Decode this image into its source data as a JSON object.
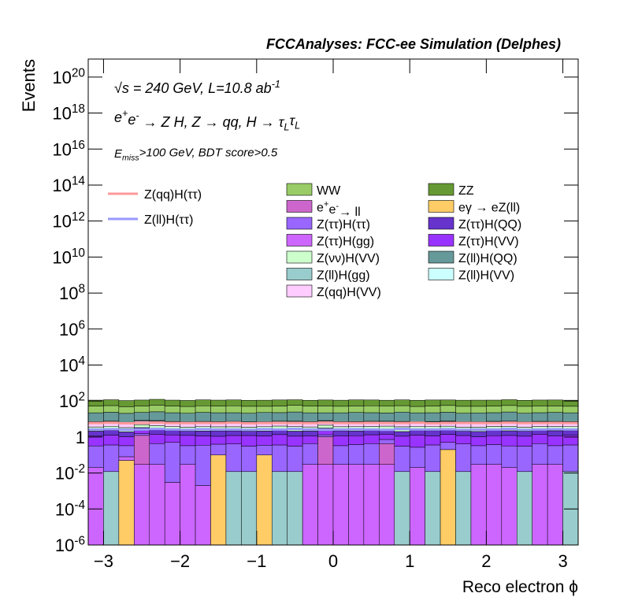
{
  "chart_data": {
    "type": "stacked_histogram",
    "title": "FCCAnalyses: FCC-ee Simulation (Delphes)",
    "annotations": [
      "√s = 240 GeV, L=10.8 ab^{-1}",
      "e^{+}e^{-} → Z H, Z  → qq, H  → τ_{L}τ_{L}",
      "E_{miss}>100 GeV, BDT score>0.5"
    ],
    "x_label": "Reco electron ϕ",
    "y_label": "Events",
    "log_y": true,
    "xlim": [
      -3.2,
      3.2
    ],
    "ylim": [
      1e-06,
      1e+21
    ],
    "xticks": [
      -3,
      -2,
      -1,
      0,
      1,
      2,
      3
    ],
    "yticks": [
      {
        "value": 1e-06,
        "label": "10^{-6}"
      },
      {
        "value": 0.0001,
        "label": "10^{-4}"
      },
      {
        "value": 0.01,
        "label": "10^{-2}"
      },
      1,
      {
        "value": 100,
        "label": "10^{2}"
      },
      {
        "value": 10000.0,
        "label": "10^{4}"
      },
      {
        "value": 1000000.0,
        "label": "10^{6}"
      },
      {
        "value": 100000000.0,
        "label": "10^{8}"
      },
      {
        "value": 10000000000.0,
        "label": "10^{10}"
      },
      {
        "value": 1000000000000.0,
        "label": "10^{12}"
      },
      {
        "value": 100000000000000.0,
        "label": "10^{14}"
      },
      {
        "value": 1e+16,
        "label": "10^{16}"
      },
      {
        "value": 1e+18,
        "label": "10^{18}"
      },
      {
        "value": 1e+20,
        "label": "10^{20}"
      }
    ],
    "bins": [
      -3.2,
      -3,
      -2.8,
      -2.6,
      -2.4,
      -2.2,
      -2,
      -1.8,
      -1.6,
      -1.4,
      -1.2,
      -1,
      -0.8,
      -0.6,
      -0.4,
      -0.2,
      0,
      0.2,
      0.4,
      0.6,
      0.8,
      1,
      1.2,
      1.4,
      1.6,
      1.8,
      2,
      2.2,
      2.4,
      2.6,
      2.8,
      3,
      3.2
    ],
    "series": [
      {
        "name": "Z(ll)H(gg)",
        "color": "#99cccc",
        "values": [
          0,
          0.012,
          0,
          0,
          0,
          0,
          0,
          0,
          0,
          0.012,
          0.012,
          0,
          0.012,
          0.012,
          0,
          0,
          0,
          0,
          0,
          0,
          0.012,
          0,
          0.012,
          0,
          0.012,
          0,
          0,
          0,
          0.012,
          0,
          0,
          0.012
        ]
      },
      {
        "name": "eγ → eZ(ll)",
        "color": "#ffcc66",
        "values": [
          0,
          0,
          0.05,
          0,
          0,
          0,
          0,
          0,
          0.1,
          0,
          0,
          0.1,
          0,
          0,
          0,
          0,
          0,
          0,
          0,
          0,
          0,
          0,
          0,
          0.2,
          0,
          0,
          0,
          0,
          0,
          0,
          0,
          0
        ]
      },
      {
        "name": "Z(ττ)H(gg)",
        "color": "#cc66ff",
        "values": [
          0.02,
          0,
          0.03,
          0.03,
          0.03,
          0.003,
          0.03,
          0.002,
          0,
          0,
          0,
          0,
          0,
          0,
          0.03,
          0.03,
          0.03,
          0.03,
          0.03,
          0.03,
          0,
          0.02,
          0,
          0,
          0,
          0.03,
          0.03,
          0.02,
          0,
          0.03,
          0.03,
          0
        ]
      },
      {
        "name": "e^{+}e^{-}→ ll",
        "color": "#cc66cc",
        "values": [
          0,
          0,
          0,
          1.2,
          0,
          0,
          0,
          0,
          0,
          0,
          0,
          0,
          0,
          0,
          0,
          1,
          0,
          0,
          0,
          0.4,
          0,
          0,
          0,
          0,
          0,
          0,
          0,
          0,
          0,
          0,
          0,
          0
        ]
      },
      {
        "name": "Z(ττ)H(ττ)",
        "color": "#9966ff",
        "values": [
          0.3,
          0.35,
          0.25,
          0.3,
          0.4,
          0.5,
          0.3,
          0.35,
          0.3,
          0.4,
          0.3,
          0.25,
          0.35,
          0.3,
          0.4,
          0.3,
          0.3,
          0.35,
          0.4,
          0.3,
          0.3,
          0.25,
          0.35,
          0.3,
          0.4,
          0.3,
          0.35,
          0.3,
          0.3,
          0.4,
          0.3,
          0.35
        ]
      },
      {
        "name": "Z(ττ)H(VV)",
        "color": "#9933ff",
        "values": [
          0.8,
          0.9,
          0.7,
          0.8,
          1,
          0.8,
          0.9,
          0.8,
          0.7,
          0.8,
          0.9,
          0.8,
          1,
          0.8,
          0.7,
          0.9,
          0.8,
          0.8,
          0.9,
          0.7,
          0.8,
          1,
          0.8,
          0.9,
          0.8,
          0.7,
          0.8,
          0.9,
          0.8,
          1,
          0.8,
          0.9
        ]
      },
      {
        "name": "Z(ττ)H(QQ)",
        "color": "#6633cc",
        "values": [
          1,
          1.1,
          0.9,
          1,
          1.2,
          1,
          0.9,
          1,
          1.1,
          1,
          0.9,
          1,
          1.2,
          1,
          1,
          0.9,
          1.1,
          1,
          1,
          1.2,
          0.9,
          1,
          1.1,
          1,
          0.9,
          1,
          1.2,
          1,
          1,
          0.9,
          1.1,
          1
        ]
      },
      {
        "name": "Z(νν)H(VV)",
        "color": "#ccffcc",
        "values": [
          1.5,
          1.6,
          1.4,
          1.5,
          1.7,
          1.5,
          1.4,
          1.6,
          1.5,
          1.5,
          1.4,
          1.6,
          1.5,
          1.7,
          1.5,
          1.4,
          1.5,
          1.6,
          1.5,
          1.4,
          1.7,
          1.5,
          1.5,
          1.6,
          1.4,
          1.5,
          1.5,
          1.7,
          1.4,
          1.5,
          1.6,
          1.5
        ]
      },
      {
        "name": "Z(qq)H(VV)",
        "color": "#ffccff",
        "values": [
          3,
          3.2,
          2.8,
          3,
          3.3,
          3,
          2.9,
          3.1,
          3,
          3.2,
          3,
          2.8,
          3,
          3.3,
          3,
          3.1,
          2.9,
          3,
          3.2,
          3,
          3.1,
          2.8,
          3,
          3.3,
          3,
          2.9,
          3,
          3.2,
          3,
          3.1,
          3,
          2.9
        ]
      },
      {
        "name": "Z(ll)H(VV)",
        "color": "#ccffff",
        "values": [
          0.5,
          0.55,
          0.45,
          0.5,
          0.6,
          0.5,
          0.45,
          0.5,
          0.55,
          0.5,
          0.5,
          0.45,
          0.6,
          0.5,
          0.5,
          0.55,
          0.5,
          0.45,
          0.5,
          0.6,
          0.5,
          0.5,
          0.55,
          0.45,
          0.5,
          0.5,
          0.6,
          0.5,
          0.45,
          0.5,
          0.55,
          0.5
        ]
      },
      {
        "name": "Z(ll)H(QQ)",
        "color": "#669999",
        "values": [
          15,
          16,
          14,
          15,
          17,
          15,
          14,
          16,
          15,
          15,
          14,
          16,
          15,
          17,
          15,
          14,
          15,
          16,
          15,
          14,
          17,
          15,
          15,
          16,
          14,
          15,
          15,
          17,
          14,
          15,
          16,
          15
        ]
      },
      {
        "name": "WW",
        "color": "#99cc66",
        "values": [
          30,
          32,
          28,
          30,
          34,
          30,
          29,
          31,
          30,
          32,
          30,
          28,
          30,
          33,
          30,
          31,
          29,
          30,
          32,
          30,
          31,
          28,
          30,
          33,
          30,
          29,
          30,
          32,
          30,
          31,
          30,
          29
        ]
      },
      {
        "name": "ZZ",
        "color": "#669933",
        "values": [
          60,
          62,
          58,
          60,
          65,
          60,
          58,
          62,
          60,
          61,
          59,
          60,
          62,
          60,
          58,
          61,
          60,
          63,
          60,
          59,
          61,
          60,
          62,
          58,
          60,
          61,
          60,
          62,
          59,
          60,
          61,
          60
        ]
      }
    ],
    "line_series": [
      {
        "name": "Z(qq)H(ττ)",
        "color": "#ff9999",
        "values": [
          6,
          6.2,
          5.8,
          6,
          6.3,
          6,
          5.9,
          6.1,
          6,
          6.2,
          5.8,
          6,
          6.1,
          6,
          5.9,
          6.2,
          6,
          6,
          6.1,
          5.9,
          6,
          6.2,
          5.8,
          6,
          6.1,
          6,
          5.9,
          6.2,
          6,
          6,
          6.1,
          6
        ]
      },
      {
        "name": "Z(ll)H(ττ)",
        "color": "#9999ff",
        "values": [
          2.6,
          2.7,
          2.5,
          2.6,
          2.8,
          2.6,
          2.5,
          2.7,
          2.6,
          2.6,
          2.5,
          2.7,
          2.6,
          2.8,
          2.6,
          2.5,
          2.6,
          2.7,
          2.6,
          2.5,
          2.8,
          2.6,
          2.6,
          2.7,
          2.5,
          2.6,
          2.6,
          2.8,
          2.5,
          2.6,
          2.7,
          2.6
        ]
      }
    ]
  }
}
